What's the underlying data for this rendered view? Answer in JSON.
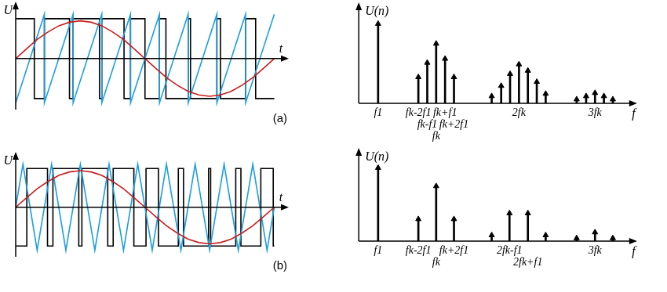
{
  "chart_data": [
    {
      "type": "line",
      "xlabel": "t",
      "ylabel": "U",
      "annotations": [
        "(a)"
      ],
      "tick_labels": false,
      "xlim": [
        0,
        1.05
      ],
      "ylim": [
        -1.15,
        1.25
      ],
      "series": [
        {
          "color": "#000000",
          "x": [
            0,
            0.072,
            0.072,
            0.111,
            0.111,
            0.208,
            0.208,
            0.222,
            0.222,
            0.324,
            0.324,
            0.333,
            0.333,
            0.419,
            0.419,
            0.444,
            0.444,
            0.5,
            0.5,
            0.556,
            0.556,
            0.581,
            0.581,
            0.667,
            0.667,
            0.676,
            0.676,
            0.778,
            0.778,
            0.792,
            0.792,
            0.889,
            0.889,
            0.928,
            0.928,
            1
          ],
          "values": [
            0.9,
            0.9,
            -0.9,
            -0.9,
            0.9,
            0.9,
            -0.9,
            -0.9,
            0.9,
            0.9,
            -0.9,
            -0.9,
            0.9,
            0.9,
            -0.9,
            -0.9,
            0.9,
            0.9,
            -0.9,
            -0.9,
            0.9,
            0.9,
            -0.9,
            -0.9,
            0.9,
            0.9,
            -0.9,
            -0.9,
            0.9,
            0.9,
            -0.9,
            -0.9,
            0.9,
            0.9,
            -0.9,
            -0.9
          ]
        },
        {
          "color": "#1e9fe0",
          "x": [
            0,
            0.111,
            0.111,
            0.222,
            0.222,
            0.333,
            0.333,
            0.444,
            0.444,
            0.556,
            0.556,
            0.667,
            0.667,
            0.778,
            0.778,
            0.889,
            0.889,
            1
          ],
          "values": [
            -1,
            1,
            -1,
            1,
            -1,
            1,
            -1,
            1,
            -1,
            1,
            -1,
            1,
            -1,
            1,
            -1,
            1,
            -1,
            1
          ]
        },
        {
          "color": "#c81e1e",
          "x": [
            0,
            0.042,
            0.083,
            0.125,
            0.167,
            0.208,
            0.25,
            0.292,
            0.333,
            0.375,
            0.417,
            0.458,
            0.5,
            0.542,
            0.583,
            0.625,
            0.667,
            0.708,
            0.75,
            0.792,
            0.833,
            0.875,
            0.917,
            0.958,
            1
          ],
          "values": [
            0,
            0.22,
            0.43,
            0.6,
            0.74,
            0.82,
            0.85,
            0.82,
            0.74,
            0.6,
            0.43,
            0.22,
            0,
            -0.22,
            -0.43,
            -0.6,
            -0.74,
            -0.82,
            -0.85,
            -0.82,
            -0.74,
            -0.6,
            -0.43,
            -0.22,
            0
          ]
        }
      ]
    },
    {
      "type": "bar",
      "xlabel": "f",
      "ylabel": "U(n)",
      "tick_labels": "x",
      "marker": "triangle",
      "color": "#000000",
      "xlim": [
        0,
        14.3
      ],
      "ylim": [
        0,
        125
      ],
      "xticks": [
        {
          "value": 1,
          "label": "f1"
        },
        {
          "value": 3.08,
          "label": "fk-2f1"
        },
        {
          "value": 3.54,
          "label": "fk-f1"
        },
        {
          "value": 4,
          "label": "fk"
        },
        {
          "value": 4.46,
          "label": "fk+f1"
        },
        {
          "value": 4.92,
          "label": "fk+2f1"
        },
        {
          "value": 8.28,
          "label": "2fk"
        },
        {
          "value": 12.21,
          "label": "3fk"
        }
      ],
      "x": [
        1,
        3.08,
        3.54,
        4,
        4.46,
        4.92,
        6.87,
        7.36,
        7.82,
        8.28,
        8.74,
        9.2,
        9.66,
        11.26,
        11.75,
        12.21,
        12.67,
        13.13
      ],
      "values": [
        100,
        33,
        51,
        75,
        56,
        33,
        9,
        22,
        37,
        49,
        41,
        27,
        12,
        5,
        9,
        13,
        9,
        5
      ]
    },
    {
      "type": "line",
      "xlabel": "t",
      "ylabel": "U",
      "annotations": [
        "(b)"
      ],
      "tick_labels": false,
      "xlim": [
        0,
        1.05
      ],
      "ylim": [
        -1.15,
        1.25
      ],
      "series": [
        {
          "color": "#000000",
          "x": [
            0,
            0.043,
            0.043,
            0.123,
            0.123,
            0.144,
            0.144,
            0.244,
            0.244,
            0.256,
            0.256,
            0.356,
            0.356,
            0.377,
            0.377,
            0.457,
            0.457,
            0.504,
            0.504,
            0.552,
            0.552,
            0.629,
            0.629,
            0.649,
            0.649,
            0.746,
            0.746,
            0.754,
            0.754,
            0.851,
            0.851,
            0.871,
            0.871,
            0.948,
            0.948,
            0.996,
            0.996,
            1
          ],
          "values": [
            -0.9,
            -0.9,
            0.9,
            0.9,
            -0.9,
            -0.9,
            0.9,
            0.9,
            -0.9,
            -0.9,
            0.9,
            0.9,
            -0.9,
            -0.9,
            0.9,
            0.9,
            -0.9,
            -0.9,
            0.9,
            0.9,
            -0.9,
            -0.9,
            0.9,
            0.9,
            -0.9,
            -0.9,
            0.9,
            0.9,
            -0.9,
            -0.9,
            0.9,
            0.9,
            -0.9,
            -0.9,
            0.9,
            0.9,
            -0.9,
            -0.9
          ]
        },
        {
          "color": "#1e9fe0",
          "x": [
            0,
            0.028,
            0.083,
            0.139,
            0.194,
            0.25,
            0.306,
            0.361,
            0.417,
            0.472,
            0.528,
            0.583,
            0.639,
            0.694,
            0.75,
            0.806,
            0.861,
            0.917,
            0.972,
            1
          ],
          "values": [
            0,
            1,
            -1,
            1,
            -1,
            1,
            -1,
            1,
            -1,
            1,
            -1,
            1,
            -1,
            1,
            -1,
            1,
            -1,
            1,
            -1,
            0
          ]
        },
        {
          "color": "#c81e1e",
          "x": [
            0,
            0.042,
            0.083,
            0.125,
            0.167,
            0.208,
            0.25,
            0.292,
            0.333,
            0.375,
            0.417,
            0.458,
            0.5,
            0.542,
            0.583,
            0.625,
            0.667,
            0.708,
            0.75,
            0.792,
            0.833,
            0.875,
            0.917,
            0.958,
            1
          ],
          "values": [
            0,
            0.22,
            0.43,
            0.6,
            0.74,
            0.82,
            0.85,
            0.82,
            0.74,
            0.6,
            0.43,
            0.22,
            0,
            -0.22,
            -0.43,
            -0.6,
            -0.74,
            -0.82,
            -0.85,
            -0.82,
            -0.74,
            -0.6,
            -0.43,
            -0.22,
            0
          ]
        }
      ]
    },
    {
      "type": "bar",
      "xlabel": "f",
      "ylabel": "U(n)",
      "tick_labels": "x",
      "marker": "triangle",
      "color": "#000000",
      "xlim": [
        0,
        14.3
      ],
      "ylim": [
        0,
        125
      ],
      "xticks": [
        {
          "value": 1,
          "label": "f1"
        },
        {
          "value": 3.08,
          "label": "fk-2f1"
        },
        {
          "value": 4,
          "label": "fk"
        },
        {
          "value": 4.92,
          "label": "fk+2f1"
        },
        {
          "value": 7.79,
          "label": "2fk-f1"
        },
        {
          "value": 8.74,
          "label": "2fk+f1"
        },
        {
          "value": 12.21,
          "label": "3fk"
        }
      ],
      "x": [
        1,
        3.08,
        4,
        4.92,
        6.87,
        7.79,
        8.74,
        9.66,
        11.26,
        12.21,
        13.13
      ],
      "values": [
        100,
        30,
        75,
        30,
        8,
        38,
        38,
        8,
        4,
        12,
        4
      ]
    }
  ]
}
